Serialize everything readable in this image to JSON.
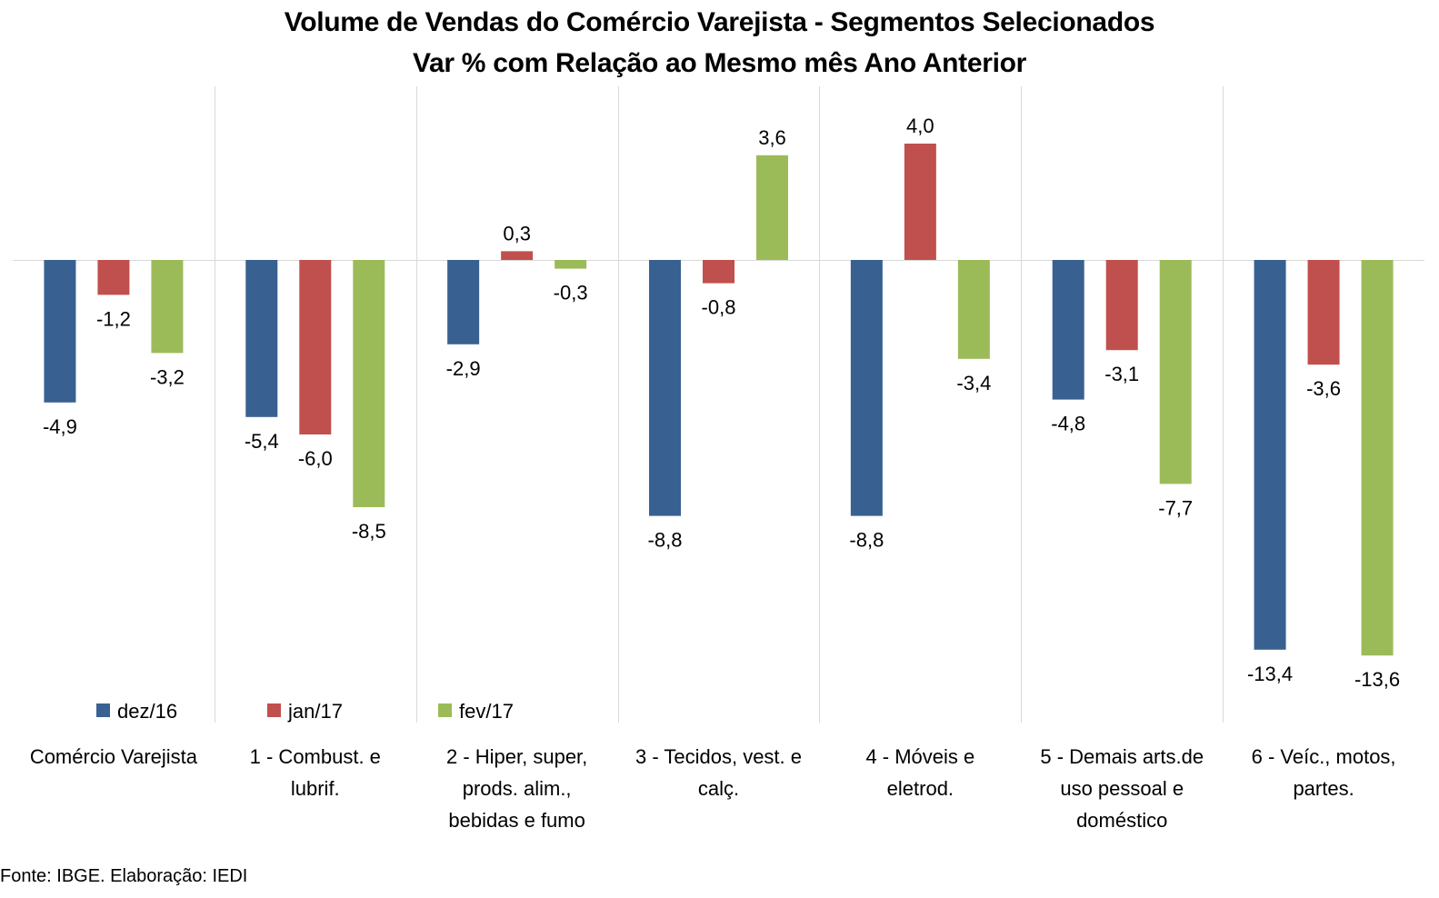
{
  "chart_data": {
    "type": "bar",
    "title": "Volume de Vendas do Comércio Varejista - Segmentos Selecionados",
    "subtitle": "Var % com Relação ao Mesmo mês Ano Anterior",
    "xlabel": "",
    "ylabel": "",
    "ylim": [
      -15,
      6
    ],
    "grid": "vertical category separators",
    "legend_position": "bottom-left",
    "colors": [
      "#386192",
      "#C0504D",
      "#9BBB59"
    ],
    "categories": [
      "Comércio Varejista",
      "1 - Combust. e lubrif.",
      "2 - Hiper, super, prods. alim., bebidas e fumo",
      "3 - Tecidos, vest. e calç.",
      "4 - Móveis e eletrod.",
      "5 - Demais arts.de uso pessoal e doméstico",
      "6 - Veíc., motos, partes."
    ],
    "category_lines": [
      [
        "Comércio Varejista"
      ],
      [
        "1 - Combust. e",
        "lubrif."
      ],
      [
        "2 - Hiper, super,",
        "prods. alim.,",
        "bebidas e fumo"
      ],
      [
        "3 - Tecidos, vest. e",
        "calç."
      ],
      [
        "4 - Móveis e",
        "eletrod."
      ],
      [
        "5 - Demais arts.de",
        "uso pessoal e",
        "doméstico"
      ],
      [
        "6 - Veíc., motos,",
        "partes."
      ]
    ],
    "series": [
      {
        "name": "dez/16",
        "values": [
          -4.9,
          -5.4,
          -2.9,
          -8.8,
          -8.8,
          -4.8,
          -13.4
        ]
      },
      {
        "name": "jan/17",
        "values": [
          -1.2,
          -6.0,
          0.3,
          -0.8,
          4.0,
          -3.1,
          -3.6
        ]
      },
      {
        "name": "fev/17",
        "values": [
          -3.2,
          -8.5,
          -0.3,
          3.6,
          -3.4,
          -7.7,
          -13.6
        ]
      }
    ]
  },
  "footer": "Fonte: IBGE. Elaboração: IEDI"
}
